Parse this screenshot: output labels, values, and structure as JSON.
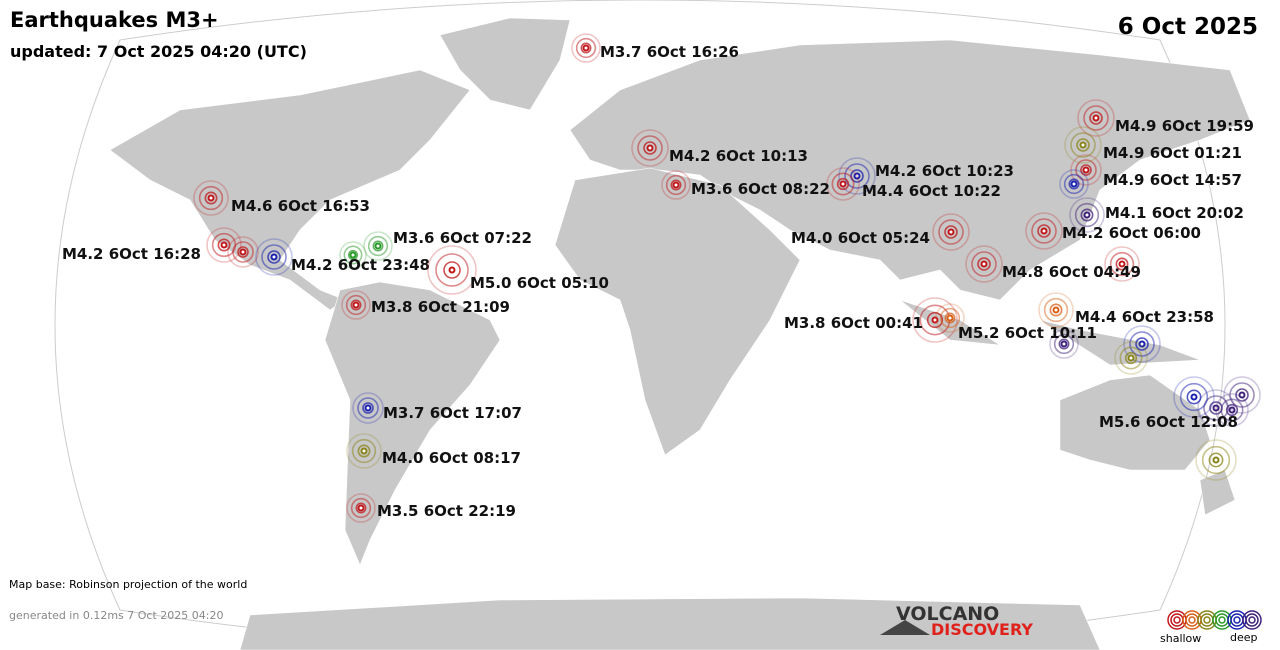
{
  "header": {
    "title": "Earthquakes M3+",
    "updated": "updated:  7 Oct 2025 04:20 (UTC)",
    "date": "6 Oct 2025"
  },
  "quakes": [
    "M3.7  6Oct 16:26",
    "M4.9  6Oct 19:59",
    "M4.9  6Oct 01:21",
    "M4.9  6Oct 14:57",
    "M4.2  6Oct 10:13",
    "M4.2  6Oct 10:23",
    "M4.4  6Oct 10:22",
    "M3.6  6Oct 08:22",
    "M4.1  6Oct 20:02",
    "M4.6  6Oct 16:53",
    "M4.2  6Oct 16:28",
    "M4.2  6Oct 23:48",
    "M3.6  6Oct 07:22",
    "M5.0  6Oct 05:10",
    "M4.0  6Oct 05:24",
    "M4.2  6Oct 06:00",
    "M4.8  6Oct 04:49",
    "M3.8  6Oct 21:09",
    "M3.8  6Oct 00:41",
    "M5.2  6Oct 10:11",
    "M4.4  6Oct 23:58",
    "M3.7  6Oct 17:07",
    "M4.0  6Oct 08:17",
    "M3.5  6Oct 22:19",
    "M5.6  6Oct 12:08"
  ],
  "footer": {
    "map_base": "Map base: Robinson projection of the world",
    "generated": "generated in 0.12ms  7 Oct 2025 04:20",
    "logo_top": "VOLCANO",
    "logo_bottom": "DISCOVERY"
  },
  "legend": {
    "shallow": "shallow",
    "deep": "deep"
  }
}
